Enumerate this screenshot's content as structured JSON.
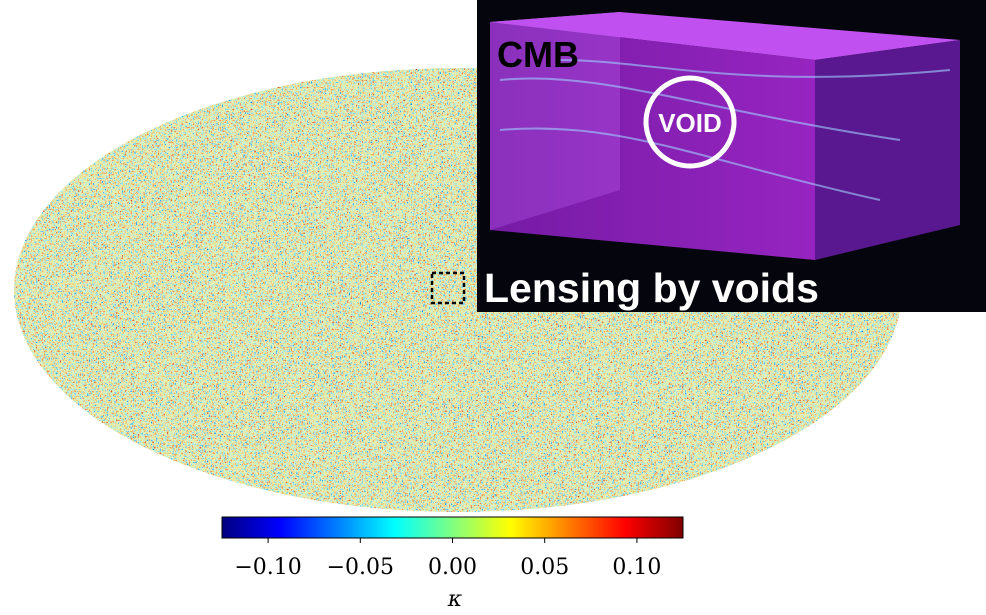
{
  "map": {
    "colorbar": {
      "lim": [
        -0.125,
        0.125
      ],
      "ticks": [
        {
          "value": -0.1,
          "label": "−0.10"
        },
        {
          "value": -0.05,
          "label": "−0.05"
        },
        {
          "value": 0,
          "label": "0.00"
        },
        {
          "value": 0.05,
          "label": "0.05"
        },
        {
          "value": 0.1,
          "label": "0.10"
        }
      ],
      "label": "κ"
    }
  },
  "inset": {
    "cmb_label": "CMB",
    "void_label": "VOID",
    "caption": "Lensing by voids"
  }
}
